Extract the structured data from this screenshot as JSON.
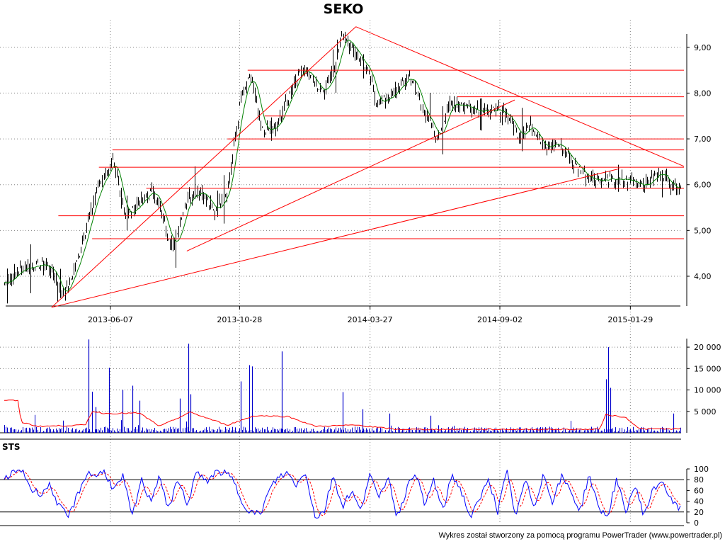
{
  "title": "SEKO",
  "footer": "Wykres został stworzony za pomocą programu PowerTrader (www.powertrader.pl)",
  "colors": {
    "background": "#ffffff",
    "price": "#000000",
    "sma": "#008000",
    "lines": "#ff0000",
    "volume": "#0000cc",
    "volume_avg": "#ff0000",
    "sts_k": "#0000ff",
    "sts_d": "#ff0000",
    "grid": "#808080"
  },
  "chart_data": [
    {
      "type": "line",
      "name": "price",
      "title": "SEKO",
      "x_tick_labels": [
        "2013-06-07",
        "2013-10-28",
        "2014-03-27",
        "2014-09-02",
        "2015-01-29"
      ],
      "ylim": [
        3.35,
        9.6
      ],
      "y_ticks": [
        4.0,
        5.0,
        6.0,
        7.0,
        8.0,
        9.0
      ],
      "y_tick_labels": [
        "4,00",
        "5,00",
        "6,00",
        "7,00",
        "8,00",
        "9,00"
      ],
      "grid": true,
      "x_keypoints": [
        0.0,
        0.03,
        0.06,
        0.075,
        0.085,
        0.095,
        0.105,
        0.12,
        0.14,
        0.16,
        0.18,
        0.2,
        0.22,
        0.25,
        0.27,
        0.29,
        0.31,
        0.33,
        0.35,
        0.365,
        0.38,
        0.4,
        0.42,
        0.44,
        0.47,
        0.49,
        0.5,
        0.52,
        0.54,
        0.55,
        0.57,
        0.6,
        0.62,
        0.64,
        0.66,
        0.69,
        0.71,
        0.74,
        0.76,
        0.78,
        0.8,
        0.82,
        0.84,
        0.86,
        0.88,
        0.9,
        0.92,
        0.95,
        0.97,
        0.985,
        1.0
      ],
      "close_keypoints": [
        3.85,
        4.2,
        4.25,
        4.05,
        3.55,
        3.85,
        4.2,
        5.0,
        6.0,
        6.5,
        5.3,
        5.6,
        5.9,
        4.6,
        5.7,
        5.9,
        5.4,
        5.9,
        7.9,
        8.4,
        7.2,
        7.2,
        7.9,
        8.6,
        8.0,
        8.6,
        9.3,
        8.9,
        8.4,
        7.8,
        7.9,
        8.4,
        7.6,
        7.0,
        7.8,
        7.7,
        7.6,
        7.6,
        7.1,
        7.3,
        6.8,
        6.9,
        6.5,
        6.2,
        6.1,
        6.1,
        6.1,
        6.0,
        6.3,
        6.0,
        5.95
      ],
      "sma_label": "SMA",
      "trend_lines": [
        {
          "x1": 0.07,
          "y1": 3.32,
          "x2": 0.52,
          "y2": 9.45
        },
        {
          "x1": 0.52,
          "y1": 9.45,
          "x2": 1.02,
          "y2": 6.4
        },
        {
          "x1": 0.27,
          "y1": 4.55,
          "x2": 0.755,
          "y2": 7.85
        },
        {
          "x1": 0.07,
          "y1": 3.32,
          "x2": 0.91,
          "y2": 6.35
        }
      ],
      "horizontal_lines": [
        {
          "y": 8.5,
          "x_from": 0.36
        },
        {
          "y": 7.92,
          "x_from": 0.67
        },
        {
          "y": 7.5,
          "x_from": 0.385
        },
        {
          "y": 7.0,
          "x_from": 0.33
        },
        {
          "y": 6.76,
          "x_from": 0.16
        },
        {
          "y": 6.38,
          "x_from": 0.14
        },
        {
          "y": 5.92,
          "x_from": 0.21
        },
        {
          "y": 5.32,
          "x_from": 0.08
        },
        {
          "y": 4.82,
          "x_from": 0.13
        }
      ]
    },
    {
      "type": "bar",
      "name": "volume",
      "ylim": [
        0,
        22000
      ],
      "y_ticks": [
        5000,
        10000,
        15000,
        20000
      ],
      "y_tick_labels": [
        "5 000",
        "10 000",
        "15 000",
        "20 000"
      ],
      "base_level": 800,
      "spikes": [
        {
          "x": 0.125,
          "v": 21800
        },
        {
          "x": 0.13,
          "v": 9600
        },
        {
          "x": 0.135,
          "v": 6000
        },
        {
          "x": 0.155,
          "v": 15200
        },
        {
          "x": 0.175,
          "v": 10000
        },
        {
          "x": 0.19,
          "v": 11000
        },
        {
          "x": 0.2,
          "v": 7500
        },
        {
          "x": 0.26,
          "v": 8000
        },
        {
          "x": 0.272,
          "v": 20800
        },
        {
          "x": 0.275,
          "v": 9000
        },
        {
          "x": 0.35,
          "v": 12000
        },
        {
          "x": 0.362,
          "v": 15800
        },
        {
          "x": 0.366,
          "v": 15500
        },
        {
          "x": 0.41,
          "v": 19000
        },
        {
          "x": 0.5,
          "v": 9500
        },
        {
          "x": 0.53,
          "v": 5500
        },
        {
          "x": 0.57,
          "v": 4500
        },
        {
          "x": 0.63,
          "v": 4000
        },
        {
          "x": 0.89,
          "v": 12500
        },
        {
          "x": 0.893,
          "v": 20000
        },
        {
          "x": 0.896,
          "v": 10500
        },
        {
          "x": 0.99,
          "v": 4500
        }
      ],
      "average_keypoints": [
        {
          "x": 0.0,
          "v": 7600
        },
        {
          "x": 0.02,
          "v": 7500
        },
        {
          "x": 0.025,
          "v": 2500
        },
        {
          "x": 0.05,
          "v": 1500
        },
        {
          "x": 0.12,
          "v": 1800
        },
        {
          "x": 0.13,
          "v": 5000
        },
        {
          "x": 0.15,
          "v": 4500
        },
        {
          "x": 0.2,
          "v": 4600
        },
        {
          "x": 0.23,
          "v": 1500
        },
        {
          "x": 0.275,
          "v": 4800
        },
        {
          "x": 0.33,
          "v": 1800
        },
        {
          "x": 0.37,
          "v": 4000
        },
        {
          "x": 0.42,
          "v": 3800
        },
        {
          "x": 0.46,
          "v": 1500
        },
        {
          "x": 0.52,
          "v": 1800
        },
        {
          "x": 0.58,
          "v": 800
        },
        {
          "x": 0.75,
          "v": 800
        },
        {
          "x": 0.88,
          "v": 800
        },
        {
          "x": 0.89,
          "v": 4300
        },
        {
          "x": 0.92,
          "v": 3500
        },
        {
          "x": 0.94,
          "v": 900
        },
        {
          "x": 1.0,
          "v": 900
        }
      ]
    },
    {
      "type": "line",
      "name": "STS",
      "title": "STS",
      "ylim": [
        0,
        100
      ],
      "y_ticks": [
        0,
        20,
        40,
        60,
        80,
        100
      ],
      "y_tick_labels": [
        "0",
        "20",
        "40",
        "60",
        "80",
        "100"
      ],
      "reference_levels": [
        20,
        80
      ],
      "k_keypoints": [
        80,
        95,
        98,
        60,
        55,
        70,
        30,
        10,
        50,
        92,
        88,
        95,
        60,
        85,
        10,
        80,
        40,
        90,
        20,
        85,
        30,
        95,
        75,
        92,
        95,
        80,
        40,
        20,
        15,
        60,
        85,
        92,
        70,
        95,
        10,
        20,
        90,
        30,
        60,
        20,
        95,
        40,
        90,
        10,
        60,
        98,
        30,
        80,
        20,
        90,
        60,
        10,
        40,
        85,
        20,
        95,
        10,
        80,
        30,
        90,
        40,
        85,
        60,
        20,
        90,
        30,
        10,
        80,
        20,
        70,
        15,
        60,
        80,
        40,
        25
      ]
    }
  ]
}
